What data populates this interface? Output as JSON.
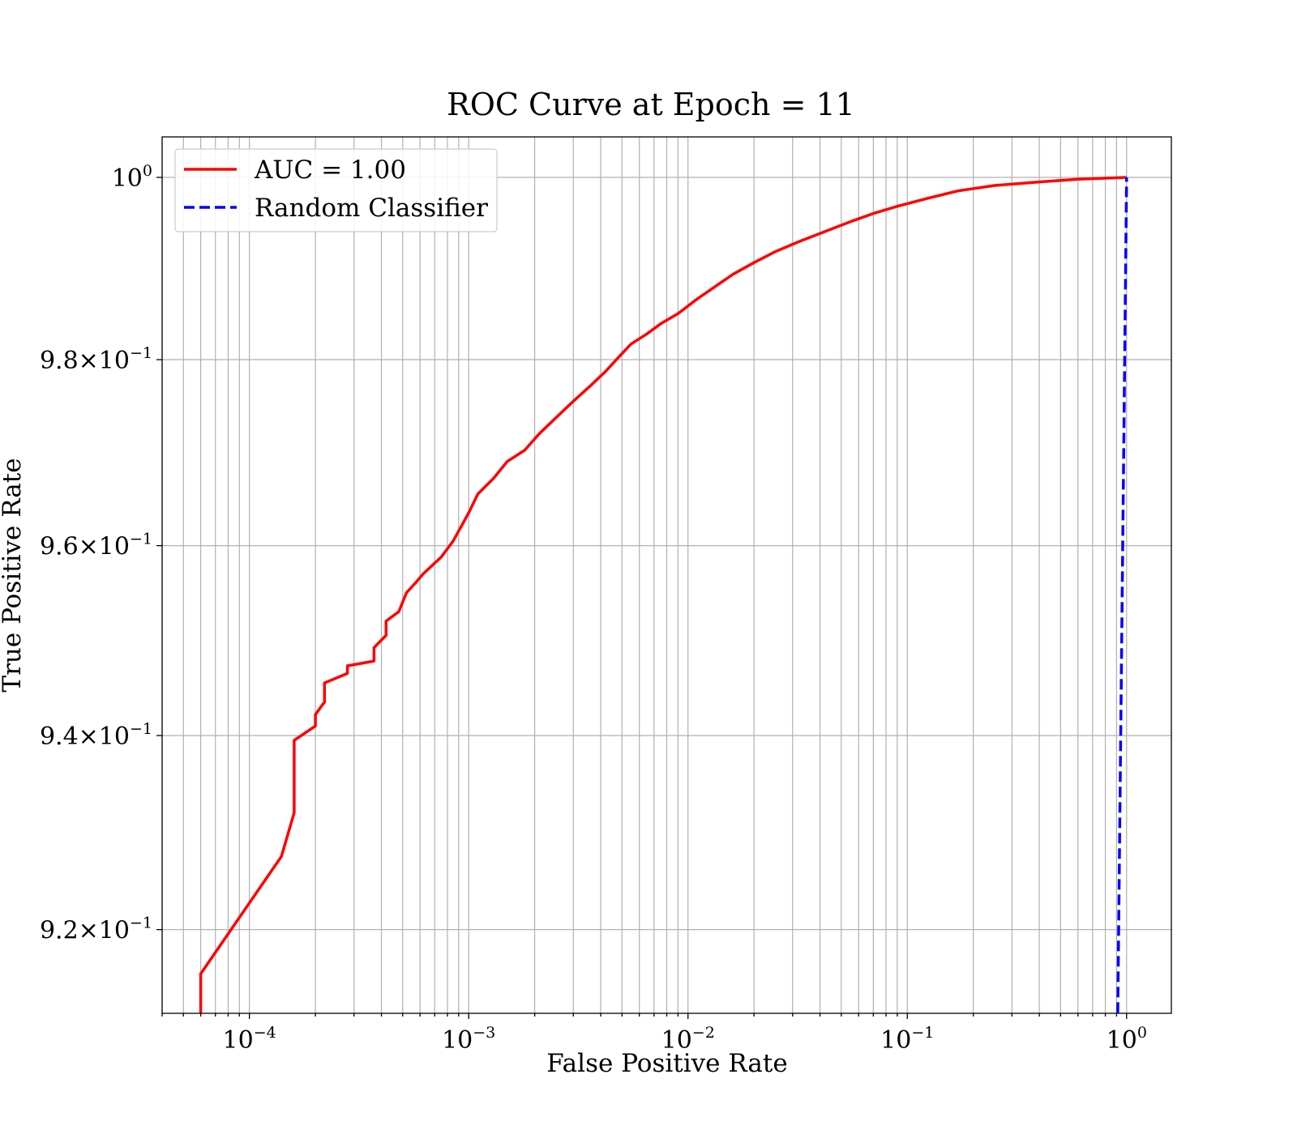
{
  "chart_data": {
    "type": "line",
    "title": "ROC Curve at Epoch = 11",
    "xlabel": "False Positive Rate",
    "ylabel": "True Positive Rate",
    "xscale": "log",
    "yscale": "log",
    "xlim": [
      4e-05,
      1.6
    ],
    "ylim": [
      0.9115,
      1.0045
    ],
    "grid": true,
    "grid_minor": true,
    "legend": "upper-left",
    "xticks": [
      {
        "value": 0.0001,
        "base": "10",
        "exp": "−4"
      },
      {
        "value": 0.001,
        "base": "10",
        "exp": "−3"
      },
      {
        "value": 0.01,
        "base": "10",
        "exp": "−2"
      },
      {
        "value": 0.1,
        "base": "10",
        "exp": "−1"
      },
      {
        "value": 1,
        "base": "10",
        "exp": "0"
      }
    ],
    "yticks": [
      {
        "value": 0.92,
        "base": "9.2×10",
        "exp": "−1"
      },
      {
        "value": 0.94,
        "base": "9.4×10",
        "exp": "−1"
      },
      {
        "value": 0.96,
        "base": "9.6×10",
        "exp": "−1"
      },
      {
        "value": 0.98,
        "base": "9.8×10",
        "exp": "−1"
      },
      {
        "value": 1.0,
        "base": "10",
        "exp": "0"
      }
    ],
    "series": [
      {
        "name": "AUC = 1.00",
        "color": "#ff0000",
        "style": "solid",
        "points": [
          [
            6e-05,
            0.9105
          ],
          [
            6e-05,
            0.9155
          ],
          [
            0.00014,
            0.9275
          ],
          [
            0.00016,
            0.932
          ],
          [
            0.00016,
            0.9395
          ],
          [
            0.0002,
            0.941
          ],
          [
            0.0002,
            0.9422
          ],
          [
            0.00022,
            0.9435
          ],
          [
            0.00022,
            0.9455
          ],
          [
            0.00028,
            0.9465
          ],
          [
            0.00028,
            0.9473
          ],
          [
            0.00037,
            0.9478
          ],
          [
            0.00037,
            0.9492
          ],
          [
            0.00042,
            0.9505
          ],
          [
            0.00042,
            0.952
          ],
          [
            0.00048,
            0.953
          ],
          [
            0.00052,
            0.955
          ],
          [
            0.00058,
            0.9562
          ],
          [
            0.00062,
            0.957
          ],
          [
            0.00075,
            0.9588
          ],
          [
            0.00085,
            0.9605
          ],
          [
            0.001,
            0.9635
          ],
          [
            0.0011,
            0.9655
          ],
          [
            0.0013,
            0.9672
          ],
          [
            0.0015,
            0.969
          ],
          [
            0.0018,
            0.9702
          ],
          [
            0.0021,
            0.972
          ],
          [
            0.0025,
            0.9737
          ],
          [
            0.003,
            0.9755
          ],
          [
            0.0036,
            0.9772
          ],
          [
            0.0042,
            0.9787
          ],
          [
            0.0048,
            0.9802
          ],
          [
            0.0055,
            0.9817
          ],
          [
            0.0065,
            0.9828
          ],
          [
            0.0075,
            0.9839
          ],
          [
            0.009,
            0.985
          ],
          [
            0.011,
            0.9866
          ],
          [
            0.013,
            0.9878
          ],
          [
            0.016,
            0.9893
          ],
          [
            0.02,
            0.9906
          ],
          [
            0.025,
            0.9918
          ],
          [
            0.032,
            0.9929
          ],
          [
            0.042,
            0.994
          ],
          [
            0.055,
            0.9951
          ],
          [
            0.07,
            0.996
          ],
          [
            0.09,
            0.9968
          ],
          [
            0.12,
            0.9976
          ],
          [
            0.17,
            0.9985
          ],
          [
            0.25,
            0.9991
          ],
          [
            0.4,
            0.9995
          ],
          [
            0.6,
            0.9998
          ],
          [
            1.0,
            1.0
          ]
        ]
      },
      {
        "name": "Random Classifier",
        "color": "#0000ff",
        "style": "dashed",
        "points": [
          [
            0.91,
            0.91
          ],
          [
            1.0,
            1.0
          ]
        ]
      }
    ]
  }
}
